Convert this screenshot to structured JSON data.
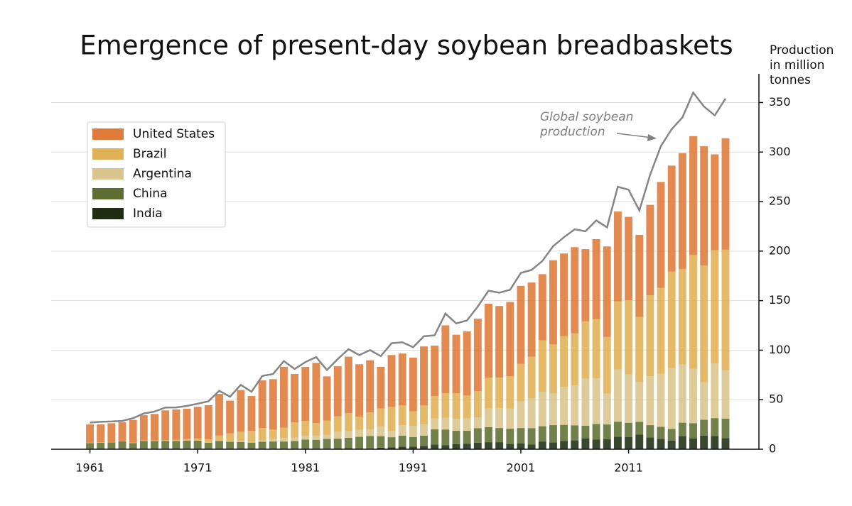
{
  "chart_data": {
    "type": "bar",
    "stacked": true,
    "title": "Emergence of present-day soybean breadbaskets",
    "y_label": "Production in million tonnes",
    "annotation": "Global soybean production",
    "x": [
      1961,
      1962,
      1963,
      1964,
      1965,
      1966,
      1967,
      1968,
      1969,
      1970,
      1971,
      1972,
      1973,
      1974,
      1975,
      1976,
      1977,
      1978,
      1979,
      1980,
      1981,
      1982,
      1983,
      1984,
      1985,
      1986,
      1987,
      1988,
      1989,
      1990,
      1991,
      1992,
      1993,
      1994,
      1995,
      1996,
      1997,
      1998,
      1999,
      2000,
      2001,
      2002,
      2003,
      2004,
      2005,
      2006,
      2007,
      2008,
      2009,
      2010,
      2011,
      2012,
      2013,
      2014,
      2015,
      2016,
      2017,
      2018,
      2019,
      2020
    ],
    "xlim": [
      1957.4,
      2023.1
    ],
    "xticks": [
      1961,
      1971,
      1981,
      1991,
      2001,
      2011
    ],
    "ylim": [
      0,
      379
    ],
    "yticks": [
      0,
      50,
      100,
      150,
      200,
      250,
      300,
      350
    ],
    "grid": true,
    "legend": "upper left",
    "series": [
      {
        "name": "India",
        "color": "#1f2d13",
        "values": [
          0,
          0,
          0,
          0,
          0,
          0,
          0,
          0,
          0,
          0,
          0.01,
          0.03,
          0.03,
          0.04,
          0.09,
          0.08,
          0.2,
          0.2,
          0.28,
          0.44,
          0.35,
          0.49,
          0.61,
          0.95,
          1.02,
          0.89,
          0.9,
          1.55,
          1.81,
          2.6,
          2.49,
          3.39,
          4.75,
          3.93,
          5.1,
          5.4,
          6.5,
          7.1,
          7.1,
          5.3,
          6.0,
          4.7,
          7.8,
          6.9,
          8.3,
          8.9,
          11.0,
          9.9,
          10.0,
          12.7,
          12.2,
          14.7,
          11.9,
          10.5,
          8.6,
          13.2,
          11.0,
          13.8,
          13.3,
          11.2
        ]
      },
      {
        "name": "China",
        "color": "#5f6e32",
        "values": [
          6.2,
          6.6,
          6.9,
          7.9,
          6.1,
          8.4,
          8.3,
          8.4,
          8.3,
          8.7,
          8.6,
          6.5,
          8.4,
          7.5,
          7.2,
          6.6,
          7.3,
          7.6,
          7.5,
          7.9,
          9.3,
          9.0,
          9.8,
          9.7,
          10.5,
          11.6,
          12.5,
          11.6,
          10.3,
          11.0,
          9.7,
          10.3,
          15.3,
          16.0,
          13.5,
          13.2,
          14.7,
          15.2,
          14.3,
          15.4,
          15.4,
          16.5,
          15.4,
          17.4,
          16.3,
          15.1,
          12.7,
          15.5,
          15.0,
          15.1,
          14.5,
          13.0,
          12.4,
          12.2,
          11.8,
          13.6,
          15.3,
          15.9,
          18.1,
          19.6
        ]
      },
      {
        "name": "Argentina",
        "color": "#d8c48c",
        "values": [
          0,
          0,
          0,
          0,
          0,
          0,
          0,
          0,
          0,
          0,
          0.1,
          0.1,
          0.3,
          0.5,
          0.5,
          0.7,
          1.4,
          2.5,
          3.7,
          3.5,
          4.0,
          4.2,
          4.0,
          7.0,
          6.5,
          7.1,
          6.7,
          9.9,
          6.5,
          10.7,
          11.3,
          11.3,
          11.0,
          11.7,
          12.1,
          12.4,
          11.0,
          18.7,
          20.0,
          20.2,
          26.9,
          30.0,
          34.8,
          32.0,
          38.3,
          40.5,
          47.5,
          46.2,
          31.0,
          52.7,
          48.9,
          40.1,
          49.3,
          53.4,
          61.4,
          58.8,
          55.0,
          37.8,
          55.3,
          48.8
        ]
      },
      {
        "name": "Brazil",
        "color": "#e0b054",
        "values": [
          0.3,
          0.3,
          0.3,
          0.3,
          0.5,
          0.6,
          0.7,
          0.7,
          1.1,
          1.5,
          2.1,
          3.2,
          5.0,
          7.9,
          9.9,
          11.2,
          12.5,
          9.5,
          10.2,
          15.2,
          15.0,
          12.8,
          14.6,
          15.5,
          18.3,
          13.3,
          17.0,
          18.0,
          24.1,
          19.9,
          14.9,
          19.2,
          22.6,
          25.0,
          25.7,
          23.2,
          26.4,
          31.3,
          31.0,
          32.7,
          37.9,
          42.1,
          51.9,
          49.5,
          51.2,
          52.5,
          57.9,
          59.8,
          57.3,
          68.8,
          74.8,
          65.8,
          81.7,
          86.8,
          97.5,
          96.4,
          114.7,
          117.9,
          114.3,
          121.8
        ]
      },
      {
        "name": "United States",
        "color": "#df7a38",
        "values": [
          18.5,
          18.2,
          19.0,
          19.1,
          23.0,
          25.3,
          26.6,
          30.1,
          30.8,
          30.7,
          32.0,
          34.6,
          42.1,
          33.1,
          42.1,
          35.1,
          48.1,
          50.9,
          61.5,
          48.9,
          54.4,
          60.7,
          44.5,
          50.6,
          57.1,
          52.9,
          52.7,
          42.2,
          52.4,
          52.4,
          54.1,
          59.6,
          50.9,
          68.4,
          59.2,
          64.8,
          73.2,
          74.6,
          72.2,
          75.1,
          78.7,
          75.0,
          66.8,
          85.0,
          83.5,
          87.0,
          72.9,
          80.7,
          91.4,
          90.7,
          84.2,
          82.8,
          91.4,
          106.9,
          107.0,
          116.9,
          120.1,
          120.5,
          96.7,
          112.5
        ]
      }
    ],
    "overlay": {
      "type": "line",
      "color": "#858585",
      "values": [
        26.9,
        27.7,
        28.0,
        28.6,
        31.4,
        36.1,
        38.0,
        42.1,
        42.2,
        43.7,
        46.0,
        48.4,
        59.0,
        53.0,
        65.0,
        58.0,
        74.0,
        76.0,
        89.0,
        81.0,
        88,
        93,
        80,
        91,
        101,
        95,
        100,
        94,
        107,
        108,
        103,
        114,
        115,
        137,
        127,
        130,
        144,
        160,
        158,
        161,
        178,
        181,
        190,
        205,
        214,
        222,
        220,
        231,
        224,
        265,
        262,
        241,
        277,
        306,
        323,
        335,
        360,
        346,
        337,
        354
      ]
    }
  }
}
